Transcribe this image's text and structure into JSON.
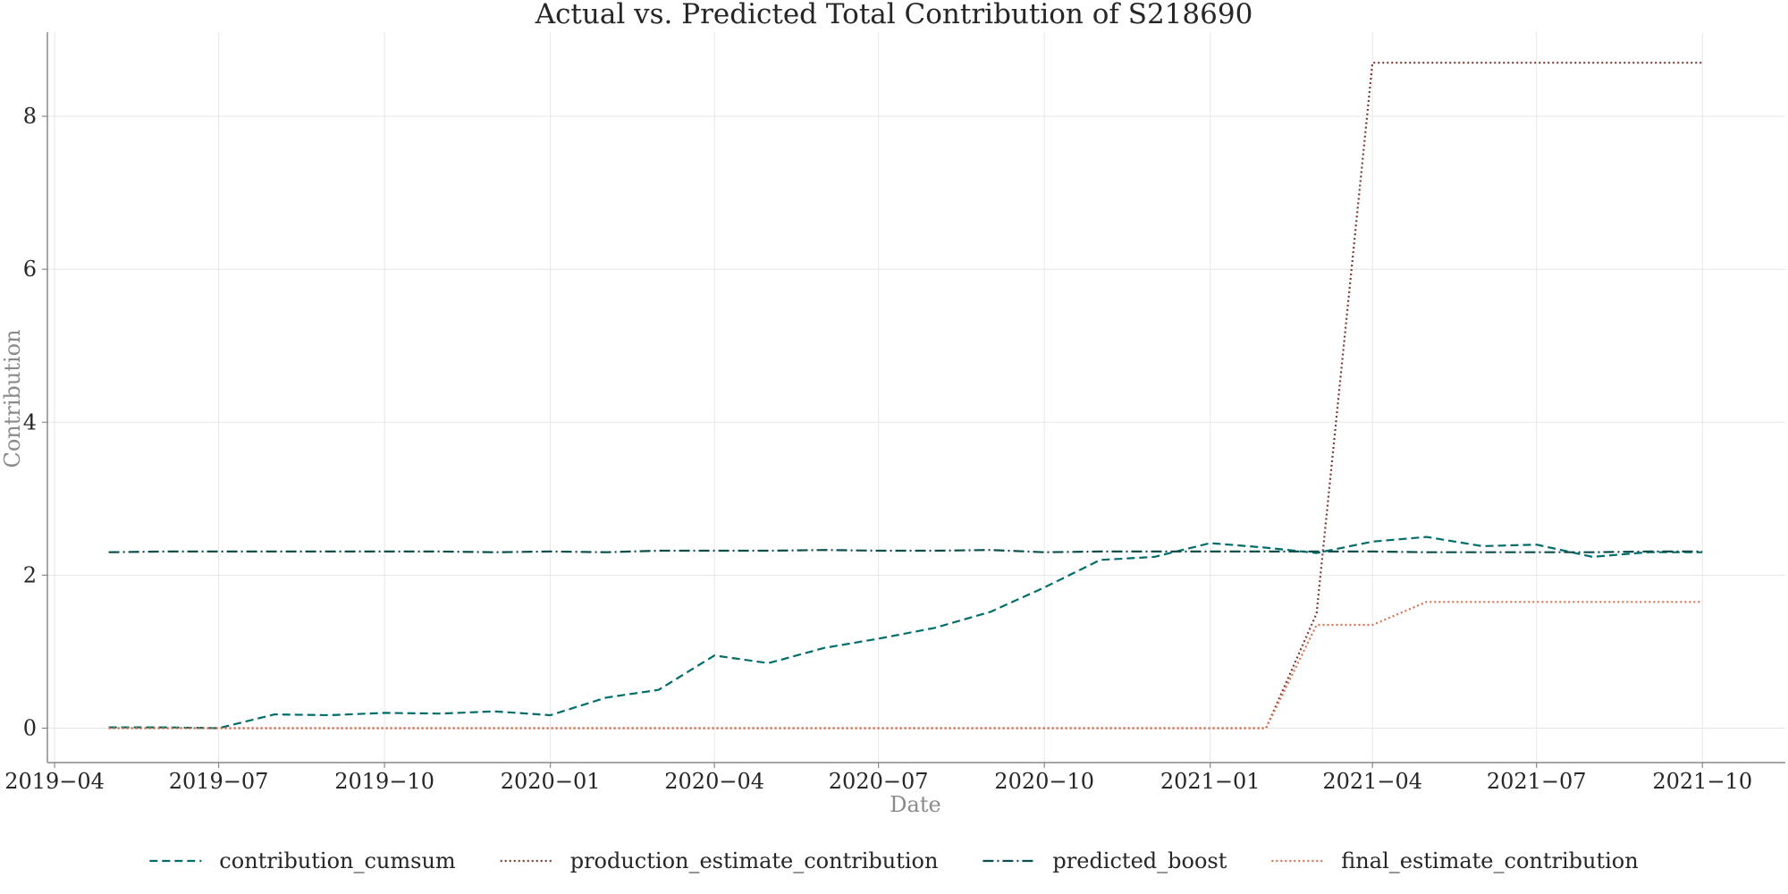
{
  "chart_data": {
    "type": "line",
    "title": "Actual vs. Predicted Total Contribution of S218690",
    "xlabel": "Date",
    "ylabel": "Contribution",
    "x_axis_type": "date",
    "xlim": [
      "2019-03-28",
      "2021-11-16"
    ],
    "ylim": [
      -0.45,
      9.1
    ],
    "x_ticks": [
      {
        "date": "2019-04-01",
        "label": "2019−04"
      },
      {
        "date": "2019-07-01",
        "label": "2019−07"
      },
      {
        "date": "2019-10-01",
        "label": "2019−10"
      },
      {
        "date": "2020-01-01",
        "label": "2020−01"
      },
      {
        "date": "2020-04-01",
        "label": "2020−04"
      },
      {
        "date": "2020-07-01",
        "label": "2020−07"
      },
      {
        "date": "2020-10-01",
        "label": "2020−10"
      },
      {
        "date": "2021-01-01",
        "label": "2021−01"
      },
      {
        "date": "2021-04-01",
        "label": "2021−04"
      },
      {
        "date": "2021-07-01",
        "label": "2021−07"
      },
      {
        "date": "2021-10-01",
        "label": "2021−10"
      }
    ],
    "y_ticks": [
      {
        "value": 0,
        "label": "0"
      },
      {
        "value": 2,
        "label": "2"
      },
      {
        "value": 4,
        "label": "4"
      },
      {
        "value": 6,
        "label": "6"
      },
      {
        "value": 8,
        "label": "8"
      }
    ],
    "grid": true,
    "legend_position": "bottom-center",
    "x": [
      "2019-05-01",
      "2019-06-01",
      "2019-07-01",
      "2019-08-01",
      "2019-09-01",
      "2019-10-01",
      "2019-11-01",
      "2019-12-01",
      "2020-01-01",
      "2020-02-01",
      "2020-03-01",
      "2020-04-01",
      "2020-05-01",
      "2020-06-01",
      "2020-07-01",
      "2020-08-01",
      "2020-09-01",
      "2020-10-01",
      "2020-11-01",
      "2020-12-01",
      "2021-01-01",
      "2021-02-01",
      "2021-03-01",
      "2021-04-01",
      "2021-05-01",
      "2021-06-01",
      "2021-07-01",
      "2021-08-01",
      "2021-09-01",
      "2021-10-01"
    ],
    "series": [
      {
        "name": "contribution_cumsum",
        "color": "#006d6a",
        "dash": "dashed",
        "values": [
          0.01,
          0.01,
          0.0,
          0.18,
          0.17,
          0.2,
          0.19,
          0.22,
          0.17,
          0.4,
          0.5,
          0.95,
          0.85,
          1.05,
          1.17,
          1.31,
          1.52,
          1.84,
          2.2,
          2.24,
          2.42,
          2.36,
          2.29,
          2.44,
          2.5,
          2.38,
          2.4,
          2.24,
          2.3,
          2.3
        ]
      },
      {
        "name": "production_estimate_contribution",
        "color": "#7a3b34",
        "dash": "dotted",
        "values": [
          0.0,
          0.0,
          0.0,
          0.0,
          0.0,
          0.0,
          0.0,
          0.0,
          0.0,
          0.0,
          0.0,
          0.0,
          0.0,
          0.0,
          0.0,
          0.0,
          0.0,
          0.0,
          0.0,
          0.0,
          0.0,
          0.0,
          1.5,
          8.7,
          8.7,
          8.7,
          8.7,
          8.7,
          8.7,
          8.7
        ]
      },
      {
        "name": "predicted_boost",
        "color": "#0b4f4c",
        "dash": "dashdot",
        "values": [
          2.3,
          2.31,
          2.31,
          2.31,
          2.31,
          2.31,
          2.31,
          2.3,
          2.31,
          2.3,
          2.32,
          2.32,
          2.32,
          2.33,
          2.32,
          2.32,
          2.33,
          2.3,
          2.31,
          2.31,
          2.31,
          2.31,
          2.31,
          2.31,
          2.3,
          2.3,
          2.3,
          2.3,
          2.31,
          2.31
        ]
      },
      {
        "name": "final_estimate_contribution",
        "color": "#d9714e",
        "dash": "dotted",
        "values": [
          0.0,
          0.0,
          0.0,
          0.0,
          0.0,
          0.0,
          0.0,
          0.0,
          0.0,
          0.0,
          0.0,
          0.0,
          0.0,
          0.0,
          0.0,
          0.0,
          0.0,
          0.0,
          0.0,
          0.0,
          0.0,
          0.0,
          1.35,
          1.35,
          1.65,
          1.65,
          1.65,
          1.65,
          1.65,
          1.65
        ]
      }
    ]
  }
}
